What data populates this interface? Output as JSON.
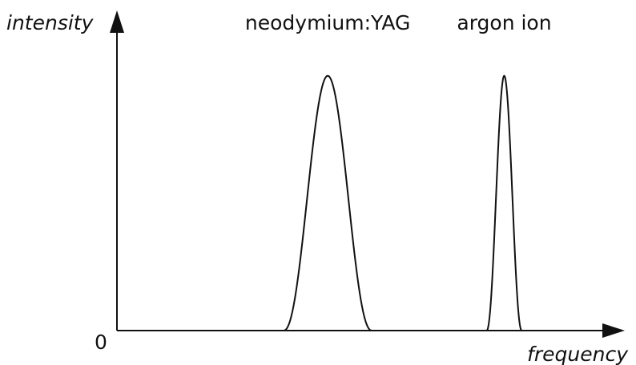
{
  "chart_data": {
    "type": "line",
    "title": "",
    "xlabel": "frequency",
    "ylabel": "intensity",
    "origin_label": "0",
    "x_range": [
      0,
      100
    ],
    "y_range": [
      0,
      100
    ],
    "grid": false,
    "line_color": "#111111",
    "series": [
      {
        "name": "neodymium:YAG",
        "center": 43,
        "peak": 84,
        "half_width": 9,
        "x": [
          30,
          34,
          38,
          41,
          43,
          45,
          48,
          52,
          56
        ],
        "values": [
          0,
          10,
          50,
          80,
          84,
          80,
          50,
          10,
          0
        ]
      },
      {
        "name": "argon ion",
        "center": 79,
        "peak": 84,
        "half_width": 3.6,
        "x": [
          75.4,
          77.2,
          78.4,
          79,
          79.6,
          80.8,
          82.6
        ],
        "values": [
          0,
          30,
          78,
          84,
          78,
          30,
          0
        ]
      }
    ]
  }
}
